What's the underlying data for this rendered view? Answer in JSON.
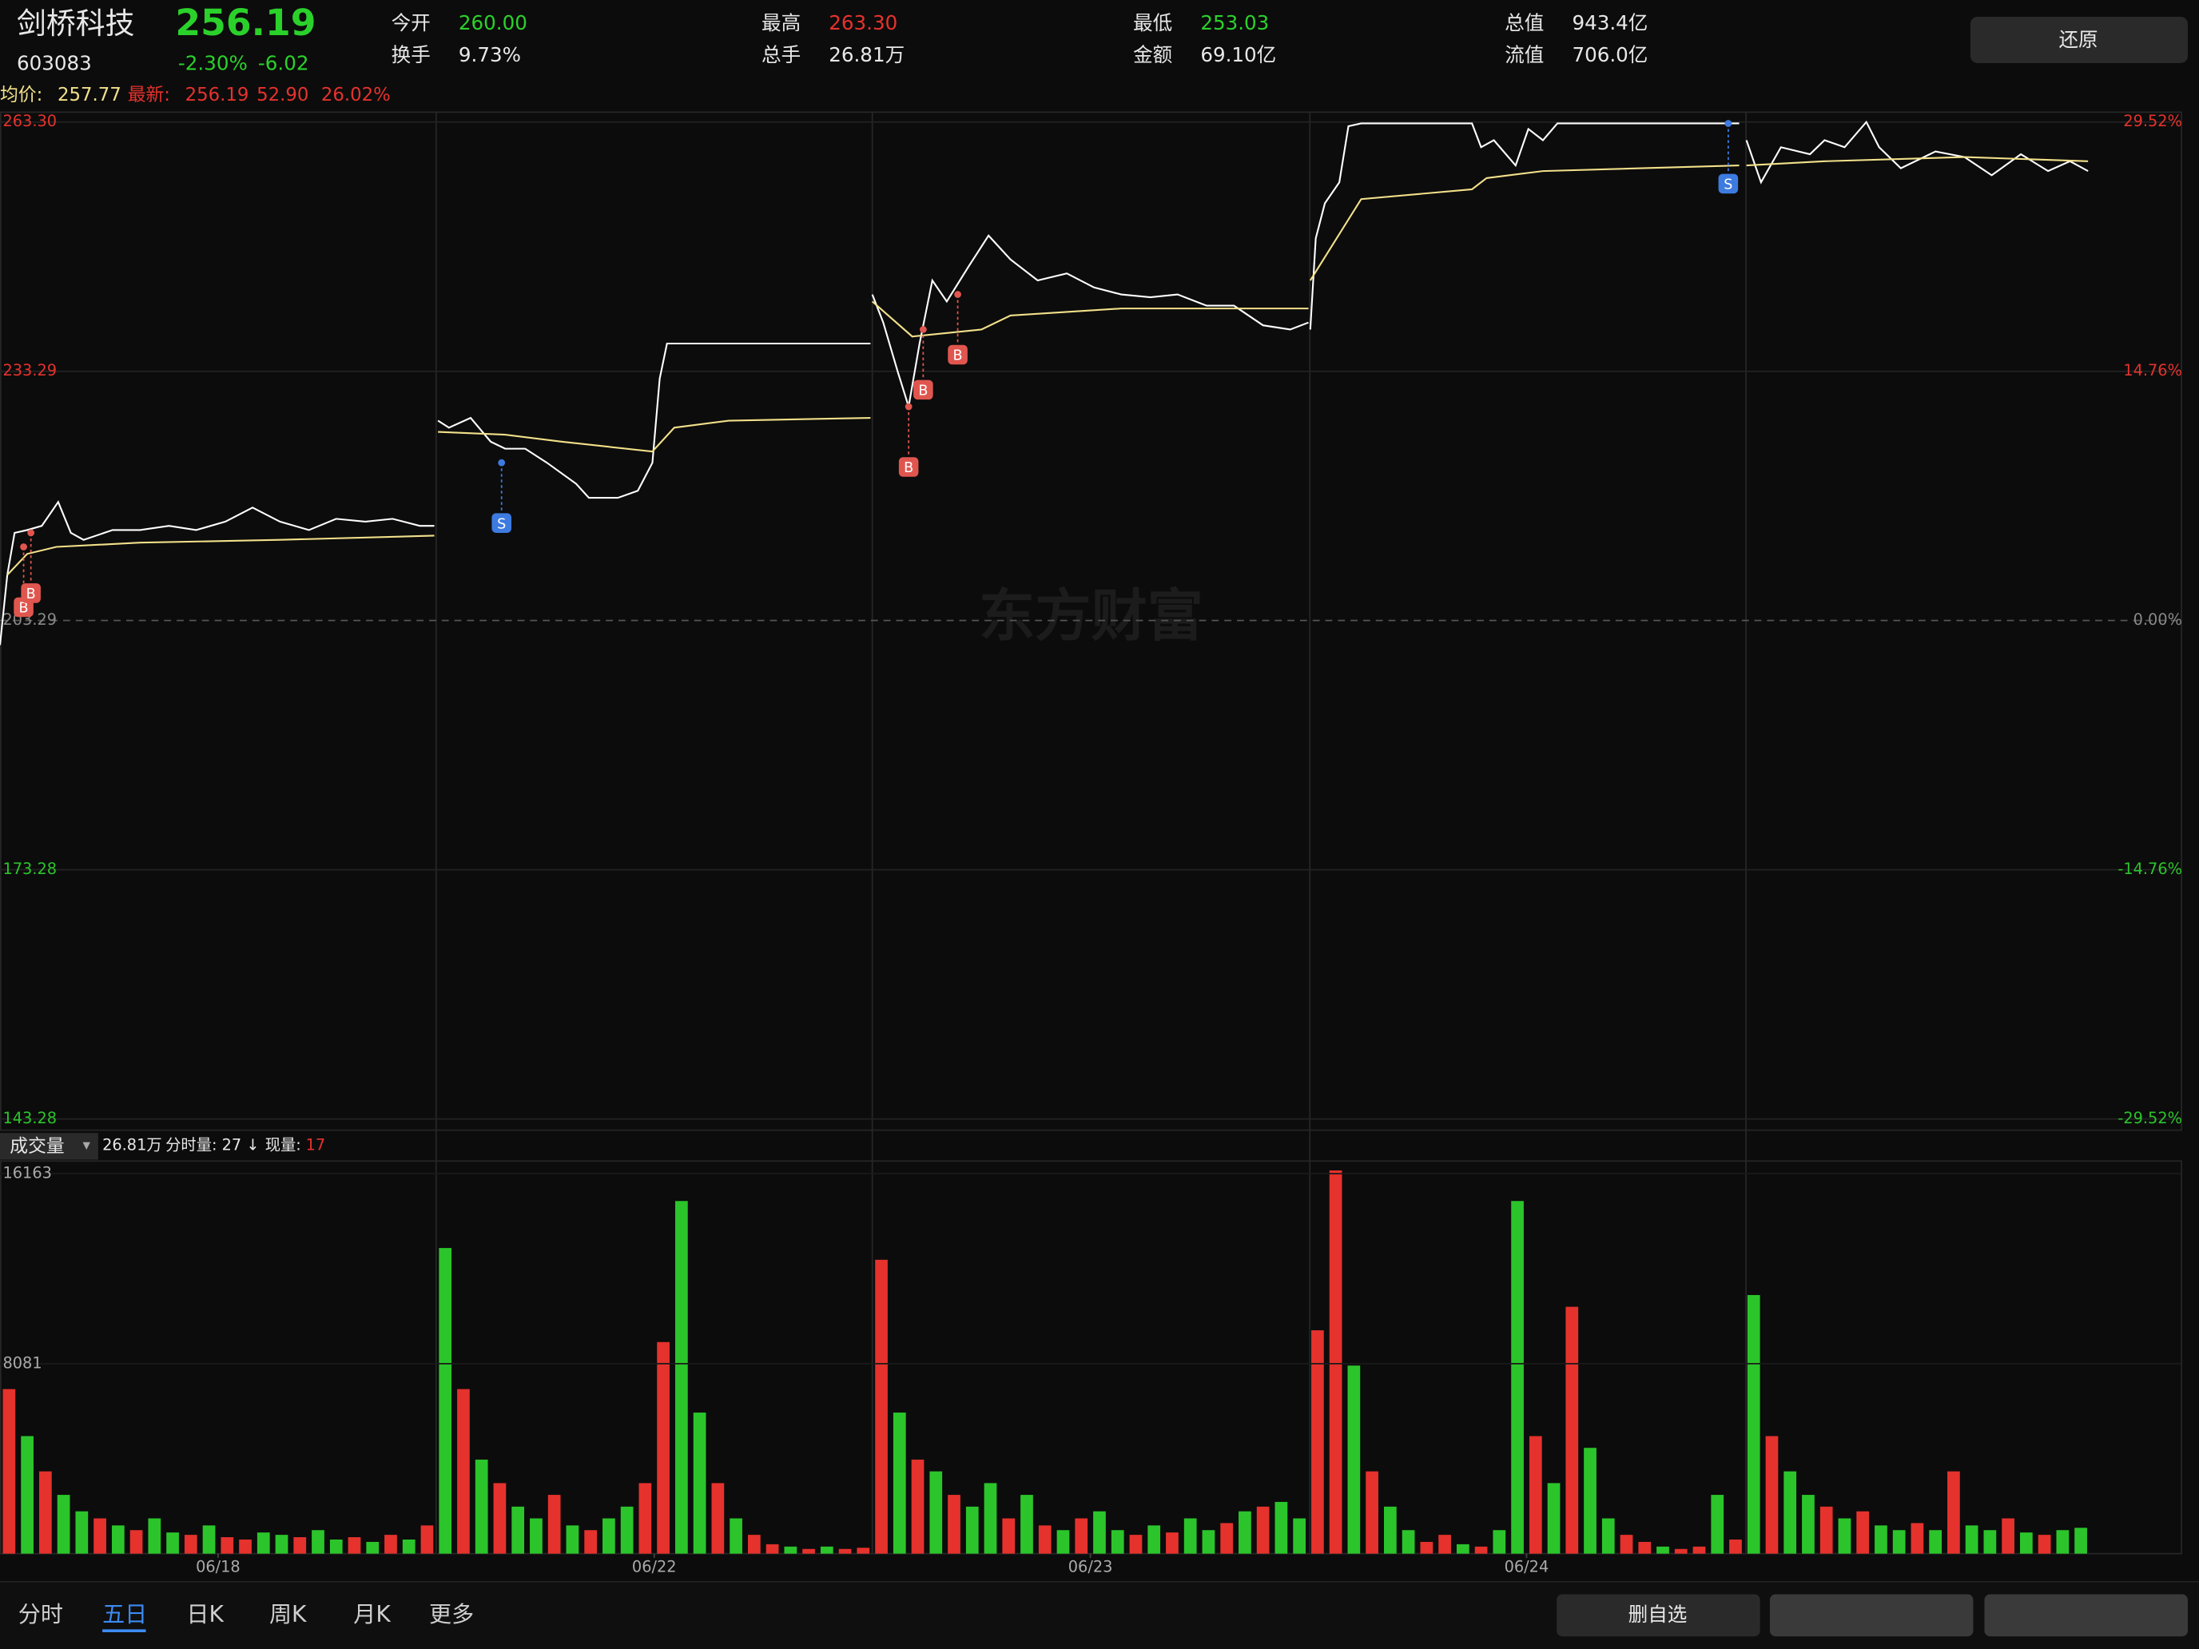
{
  "header": {
    "name": "剑桥科技",
    "code": "603083",
    "price": "256.19",
    "change_pct": "-2.30%",
    "change": "-6.02",
    "color": "#2bd12b",
    "fields": [
      {
        "label": "今开",
        "value": "260.00",
        "color": "#2bd12b"
      },
      {
        "label": "换手",
        "value": "9.73%",
        "color": "#e8e8e8"
      },
      {
        "label": "最高",
        "value": "263.30",
        "color": "#e5322d"
      },
      {
        "label": "总手",
        "value": "26.81万",
        "color": "#e8e8e8"
      },
      {
        "label": "最低",
        "value": "253.03",
        "color": "#2bd12b"
      },
      {
        "label": "金额",
        "value": "69.10亿",
        "color": "#e8e8e8"
      },
      {
        "label": "总值",
        "value": "943.4亿",
        "color": "#e8e8e8"
      },
      {
        "label": "流值",
        "value": "706.0亿",
        "color": "#e8e8e8"
      }
    ],
    "button": "还原"
  },
  "quote_line": {
    "avg_label": "均价:",
    "avg": "257.77",
    "latest_label": "最新:",
    "latest": "256.19",
    "amount": "52.90",
    "pct": "26.02%"
  },
  "watermark": "东方财富",
  "chart_data": [
    {
      "type": "line",
      "xlim": [
        0,
        1200
      ],
      "ylim": [
        143.28,
        263.3
      ],
      "yticks": [
        {
          "value": 263.3,
          "label": "263.30"
        },
        233.29,
        203.29,
        173.28,
        143.28
      ],
      "y2lim": [
        -29.52,
        29.52
      ],
      "y2ticks": [
        {
          "value": 29.52,
          "label": "29.52%"
        },
        {
          "value": 14.76,
          "label": "14.76%"
        },
        {
          "value": 0,
          "label": "0.00%"
        },
        {
          "value": -14.76,
          "label": "-14.76%"
        },
        {
          "value": -29.52,
          "label": "-29.52%"
        }
      ],
      "grid": true,
      "series": [
        {
          "color": "#ffffff",
          "x": [
            0,
            4,
            8,
            15,
            23,
            32,
            39,
            46,
            62,
            77,
            93,
            108,
            124,
            139,
            154,
            170,
            185,
            201,
            216,
            231,
            239,
            null,
            241,
            247,
            259,
            270,
            278,
            289,
            301,
            317,
            324,
            340,
            351,
            359,
            363,
            367,
            378,
            479,
            null,
            480,
            486,
            494,
            500,
            506,
            513,
            521,
            533,
            544,
            556,
            571,
            587,
            602,
            617,
            633,
            648,
            664,
            679,
            695,
            710,
            720,
            null,
            721,
            724,
            729,
            737,
            742,
            749,
            810,
            815,
            822,
            834,
            841,
            849,
            857,
            957,
            null,
            961,
            969,
            980,
            996,
            1004,
            1015,
            1027,
            1034,
            1046,
            1065,
            1081,
            1096,
            1112,
            1127,
            1139,
            1149
          ],
          "values": [
            200.34,
            208.78,
            213.84,
            214.18,
            214.69,
            217.56,
            213.84,
            213.0,
            214.18,
            214.18,
            214.69,
            214.18,
            215.19,
            216.88,
            215.19,
            214.18,
            215.53,
            215.19,
            215.53,
            214.69,
            214.69,
            null,
            227.35,
            226.5,
            227.68,
            224.81,
            223.97,
            223.97,
            222.28,
            219.75,
            218.06,
            218.06,
            218.91,
            222.28,
            232.41,
            236.63,
            236.63,
            236.63,
            null,
            242.54,
            239.16,
            233.25,
            229.03,
            236.63,
            244.23,
            241.69,
            245.91,
            249.63,
            246.76,
            244.23,
            245.07,
            243.38,
            242.54,
            242.2,
            242.54,
            241.19,
            241.19,
            238.82,
            238.32,
            239.16,
            null,
            238.32,
            249.29,
            253.51,
            256.04,
            262.79,
            263.13,
            263.13,
            260.26,
            261.11,
            258.07,
            262.46,
            261.11,
            263.13,
            263.13,
            null,
            261.11,
            256.04,
            260.26,
            259.42,
            261.11,
            260.26,
            263.3,
            260.26,
            257.73,
            259.75,
            259.08,
            256.89,
            259.42,
            257.39,
            258.57,
            257.39
          ]
        },
        {
          "color": "#f2e08a",
          "x": [
            4,
            15,
            31,
            77,
            154,
            239,
            null,
            241,
            278,
            309,
            359,
            371,
            401,
            479,
            null,
            480,
            502,
            540,
            556,
            617,
            720,
            null,
            721,
            749,
            810,
            818,
            849,
            957,
            null,
            961,
            1004,
            1081,
            1149
          ],
          "values": [
            208.78,
            211.31,
            212.15,
            212.66,
            213.0,
            213.5,
            null,
            225.99,
            225.66,
            224.81,
            223.63,
            226.5,
            227.35,
            227.68,
            null,
            241.69,
            237.47,
            238.32,
            240.01,
            240.85,
            240.85,
            null,
            244.23,
            254.02,
            255.2,
            256.55,
            257.39,
            258.07,
            null,
            258.07,
            258.57,
            259.08,
            258.57
          ]
        }
      ],
      "annotations": [
        {
          "label": "B",
          "x": 13,
          "value": 212.15,
          "color": "#e0564f"
        },
        {
          "label": "B",
          "x": 17,
          "value": 213.84,
          "color": "#e0564f"
        },
        {
          "label": "S",
          "x": 276,
          "value": 222.28,
          "color": "#3d7be0"
        },
        {
          "label": "B",
          "x": 500,
          "value": 229.03,
          "color": "#e0564f"
        },
        {
          "label": "B",
          "x": 508,
          "value": 238.32,
          "color": "#e0564f"
        },
        {
          "label": "B",
          "x": 527,
          "value": 242.54,
          "color": "#e0564f"
        },
        {
          "label": "S",
          "x": 951,
          "value": 263.13,
          "color": "#3d7be0"
        }
      ]
    },
    {
      "type": "bar",
      "title": "成交量",
      "info": [
        "26.81万",
        "分时量: 27 ↓",
        "现量:",
        "17"
      ],
      "xlim": [
        0,
        1200
      ],
      "xticks": [
        {
          "value": 120,
          "label": "06/18"
        },
        {
          "value": 360,
          "label": "06/22"
        },
        {
          "value": 600,
          "label": "06/23"
        },
        {
          "value": 840,
          "label": "06/24"
        }
      ],
      "ylim": [
        0,
        16700
      ],
      "yticks": [
        8081,
        16163
      ],
      "values": [
        7000,
        5000,
        3500,
        2500,
        1800,
        1500,
        1200,
        1000,
        1500,
        900,
        800,
        1200,
        700,
        600,
        900,
        800,
        700,
        1000,
        600,
        700,
        500,
        800,
        600,
        1200,
        13000,
        7000,
        4000,
        3000,
        2000,
        1500,
        2500,
        1200,
        1000,
        1500,
        2000,
        3000,
        9000,
        15000,
        6000,
        3000,
        1500,
        800,
        400,
        300,
        200,
        300,
        200,
        250,
        12500,
        6000,
        4000,
        3500,
        2500,
        2000,
        3000,
        1500,
        2500,
        1200,
        1000,
        1500,
        1800,
        1000,
        800,
        1200,
        900,
        1500,
        1000,
        1300,
        1800,
        2000,
        2200,
        1500,
        9500,
        16300,
        8000,
        3500,
        2000,
        1000,
        500,
        800,
        400,
        300,
        1000,
        15000,
        5000,
        3000,
        10500,
        4500,
        1500,
        800,
        500,
        300,
        200,
        300,
        2500,
        600,
        11000,
        5000,
        3500,
        2500,
        2000,
        1500,
        1800,
        1200,
        1000,
        1300,
        1000,
        3500,
        1200,
        1000,
        1500,
        900,
        800,
        1000,
        1100
      ],
      "colors": [
        "#e5322d",
        "#2bc52b",
        "#e5322d",
        "#2bc52b",
        "#2bc52b",
        "#e5322d",
        "#2bc52b",
        "#e5322d",
        "#2bc52b",
        "#2bc52b",
        "#e5322d",
        "#2bc52b",
        "#e5322d",
        "#e5322d",
        "#2bc52b",
        "#2bc52b",
        "#e5322d",
        "#2bc52b",
        "#2bc52b",
        "#e5322d",
        "#2bc52b",
        "#e5322d",
        "#2bc52b",
        "#e5322d",
        "#2bc52b",
        "#e5322d",
        "#2bc52b",
        "#e5322d",
        "#2bc52b",
        "#2bc52b",
        "#e5322d",
        "#2bc52b",
        "#e5322d",
        "#2bc52b",
        "#2bc52b",
        "#e5322d",
        "#e5322d",
        "#2bc52b",
        "#2bc52b",
        "#e5322d",
        "#2bc52b",
        "#e5322d",
        "#e5322d",
        "#2bc52b",
        "#e5322d",
        "#2bc52b",
        "#e5322d",
        "#e5322d",
        "#e5322d",
        "#2bc52b",
        "#e5322d",
        "#2bc52b",
        "#e5322d",
        "#2bc52b",
        "#2bc52b",
        "#e5322d",
        "#2bc52b",
        "#e5322d",
        "#2bc52b",
        "#e5322d",
        "#2bc52b",
        "#2bc52b",
        "#e5322d",
        "#2bc52b",
        "#e5322d",
        "#2bc52b",
        "#2bc52b",
        "#e5322d",
        "#2bc52b",
        "#e5322d",
        "#2bc52b",
        "#2bc52b",
        "#e5322d",
        "#e5322d",
        "#2bc52b",
        "#e5322d",
        "#2bc52b",
        "#2bc52b",
        "#e5322d",
        "#e5322d",
        "#2bc52b",
        "#e5322d",
        "#2bc52b",
        "#2bc52b",
        "#e5322d",
        "#2bc52b",
        "#e5322d",
        "#2bc52b",
        "#2bc52b",
        "#e5322d",
        "#e5322d",
        "#2bc52b",
        "#e5322d",
        "#e5322d",
        "#2bc52b",
        "#e5322d",
        "#2bc52b",
        "#e5322d",
        "#2bc52b",
        "#2bc52b",
        "#e5322d",
        "#2bc52b",
        "#e5322d",
        "#2bc52b",
        "#2bc52b",
        "#e5322d",
        "#2bc52b",
        "#e5322d",
        "#2bc52b",
        "#2bc52b",
        "#e5322d",
        "#2bc52b",
        "#e5322d",
        "#2bc52b",
        "#2bc52b"
      ]
    }
  ],
  "tabs": [
    {
      "label": "分时",
      "selected": false
    },
    {
      "label": "五日",
      "selected": true
    },
    {
      "label": "日K",
      "selected": false
    },
    {
      "label": "周K",
      "selected": false
    },
    {
      "label": "月K",
      "selected": false
    },
    {
      "label": "更多",
      "selected": false
    }
  ],
  "bottom_button": "删自选"
}
